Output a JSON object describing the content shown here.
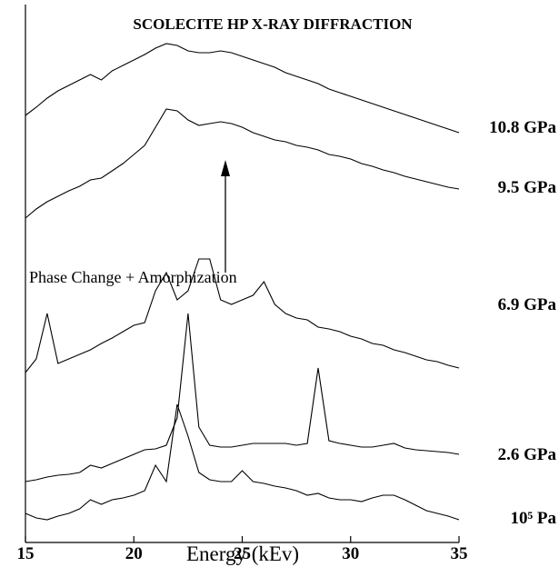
{
  "chart_data": {
    "type": "line",
    "title": "SCOLECITE HP X-RAY DIFFRACTION",
    "x_label": "Energy (kEv)",
    "annotation": "Phase Change + Amorphization",
    "xlim": [
      15,
      35
    ],
    "xticks": [
      15,
      20,
      25,
      30,
      35
    ],
    "ylim": [
      0,
      592
    ],
    "x": [
      15,
      15.5,
      16,
      16.5,
      17,
      17.5,
      18,
      18.5,
      19,
      19.5,
      20,
      20.5,
      21,
      21.5,
      22,
      22.5,
      23,
      23.5,
      24,
      24.5,
      25,
      25.5,
      26,
      26.5,
      27,
      27.5,
      28,
      28.5,
      29,
      29.5,
      30,
      30.5,
      31,
      31.5,
      32,
      32.5,
      33,
      33.5,
      34,
      34.5,
      35
    ],
    "series": [
      {
        "name": "10.8 GPa",
        "color": "#000000",
        "values": [
          470,
          479,
          489,
          497,
          503,
          509,
          515,
          509,
          519,
          525,
          531,
          537,
          544,
          549,
          547,
          541,
          539,
          539,
          541,
          539,
          535,
          531,
          527,
          523,
          517,
          513,
          509,
          505,
          499,
          495,
          491,
          487,
          483,
          479,
          475,
          471,
          467,
          463,
          459,
          455,
          451
        ]
      },
      {
        "name": "9.5 GPa",
        "color": "#000000",
        "values": [
          357,
          367,
          375,
          381,
          387,
          392,
          399,
          401,
          409,
          417,
          427,
          437,
          457,
          477,
          475,
          465,
          459,
          461,
          463,
          461,
          457,
          451,
          447,
          443,
          441,
          437,
          435,
          432,
          427,
          425,
          422,
          417,
          414,
          410,
          407,
          403,
          400,
          397,
          394,
          391,
          389
        ]
      },
      {
        "name": "6.9 GPa",
        "color": "#000000",
        "values": [
          187,
          202,
          252,
          197,
          202,
          207,
          212,
          219,
          225,
          232,
          239,
          242,
          277,
          297,
          267,
          277,
          312,
          312,
          267,
          262,
          267,
          272,
          287,
          262,
          252,
          247,
          245,
          237,
          235,
          232,
          227,
          224,
          219,
          217,
          212,
          209,
          205,
          201,
          199,
          195,
          192
        ]
      },
      {
        "name": "2.6 GPa",
        "color": "#000000",
        "values": [
          67,
          69,
          72,
          74,
          75,
          77,
          85,
          82,
          87,
          92,
          97,
          102,
          103,
          107,
          137,
          252,
          127,
          107,
          105,
          105,
          107,
          109,
          109,
          109,
          109,
          107,
          109,
          192,
          112,
          109,
          107,
          105,
          105,
          107,
          109,
          104,
          102,
          101,
          100,
          99,
          97
        ]
      },
      {
        "name": "10⁵ Pa",
        "color": "#000000",
        "values": [
          32,
          27,
          25,
          29,
          32,
          37,
          47,
          42,
          47,
          49,
          52,
          57,
          85,
          67,
          152,
          117,
          77,
          69,
          67,
          67,
          79,
          67,
          65,
          62,
          60,
          57,
          52,
          54,
          49,
          47,
          47,
          45,
          49,
          52,
          52,
          47,
          41,
          35,
          32,
          29,
          25
        ]
      }
    ]
  }
}
